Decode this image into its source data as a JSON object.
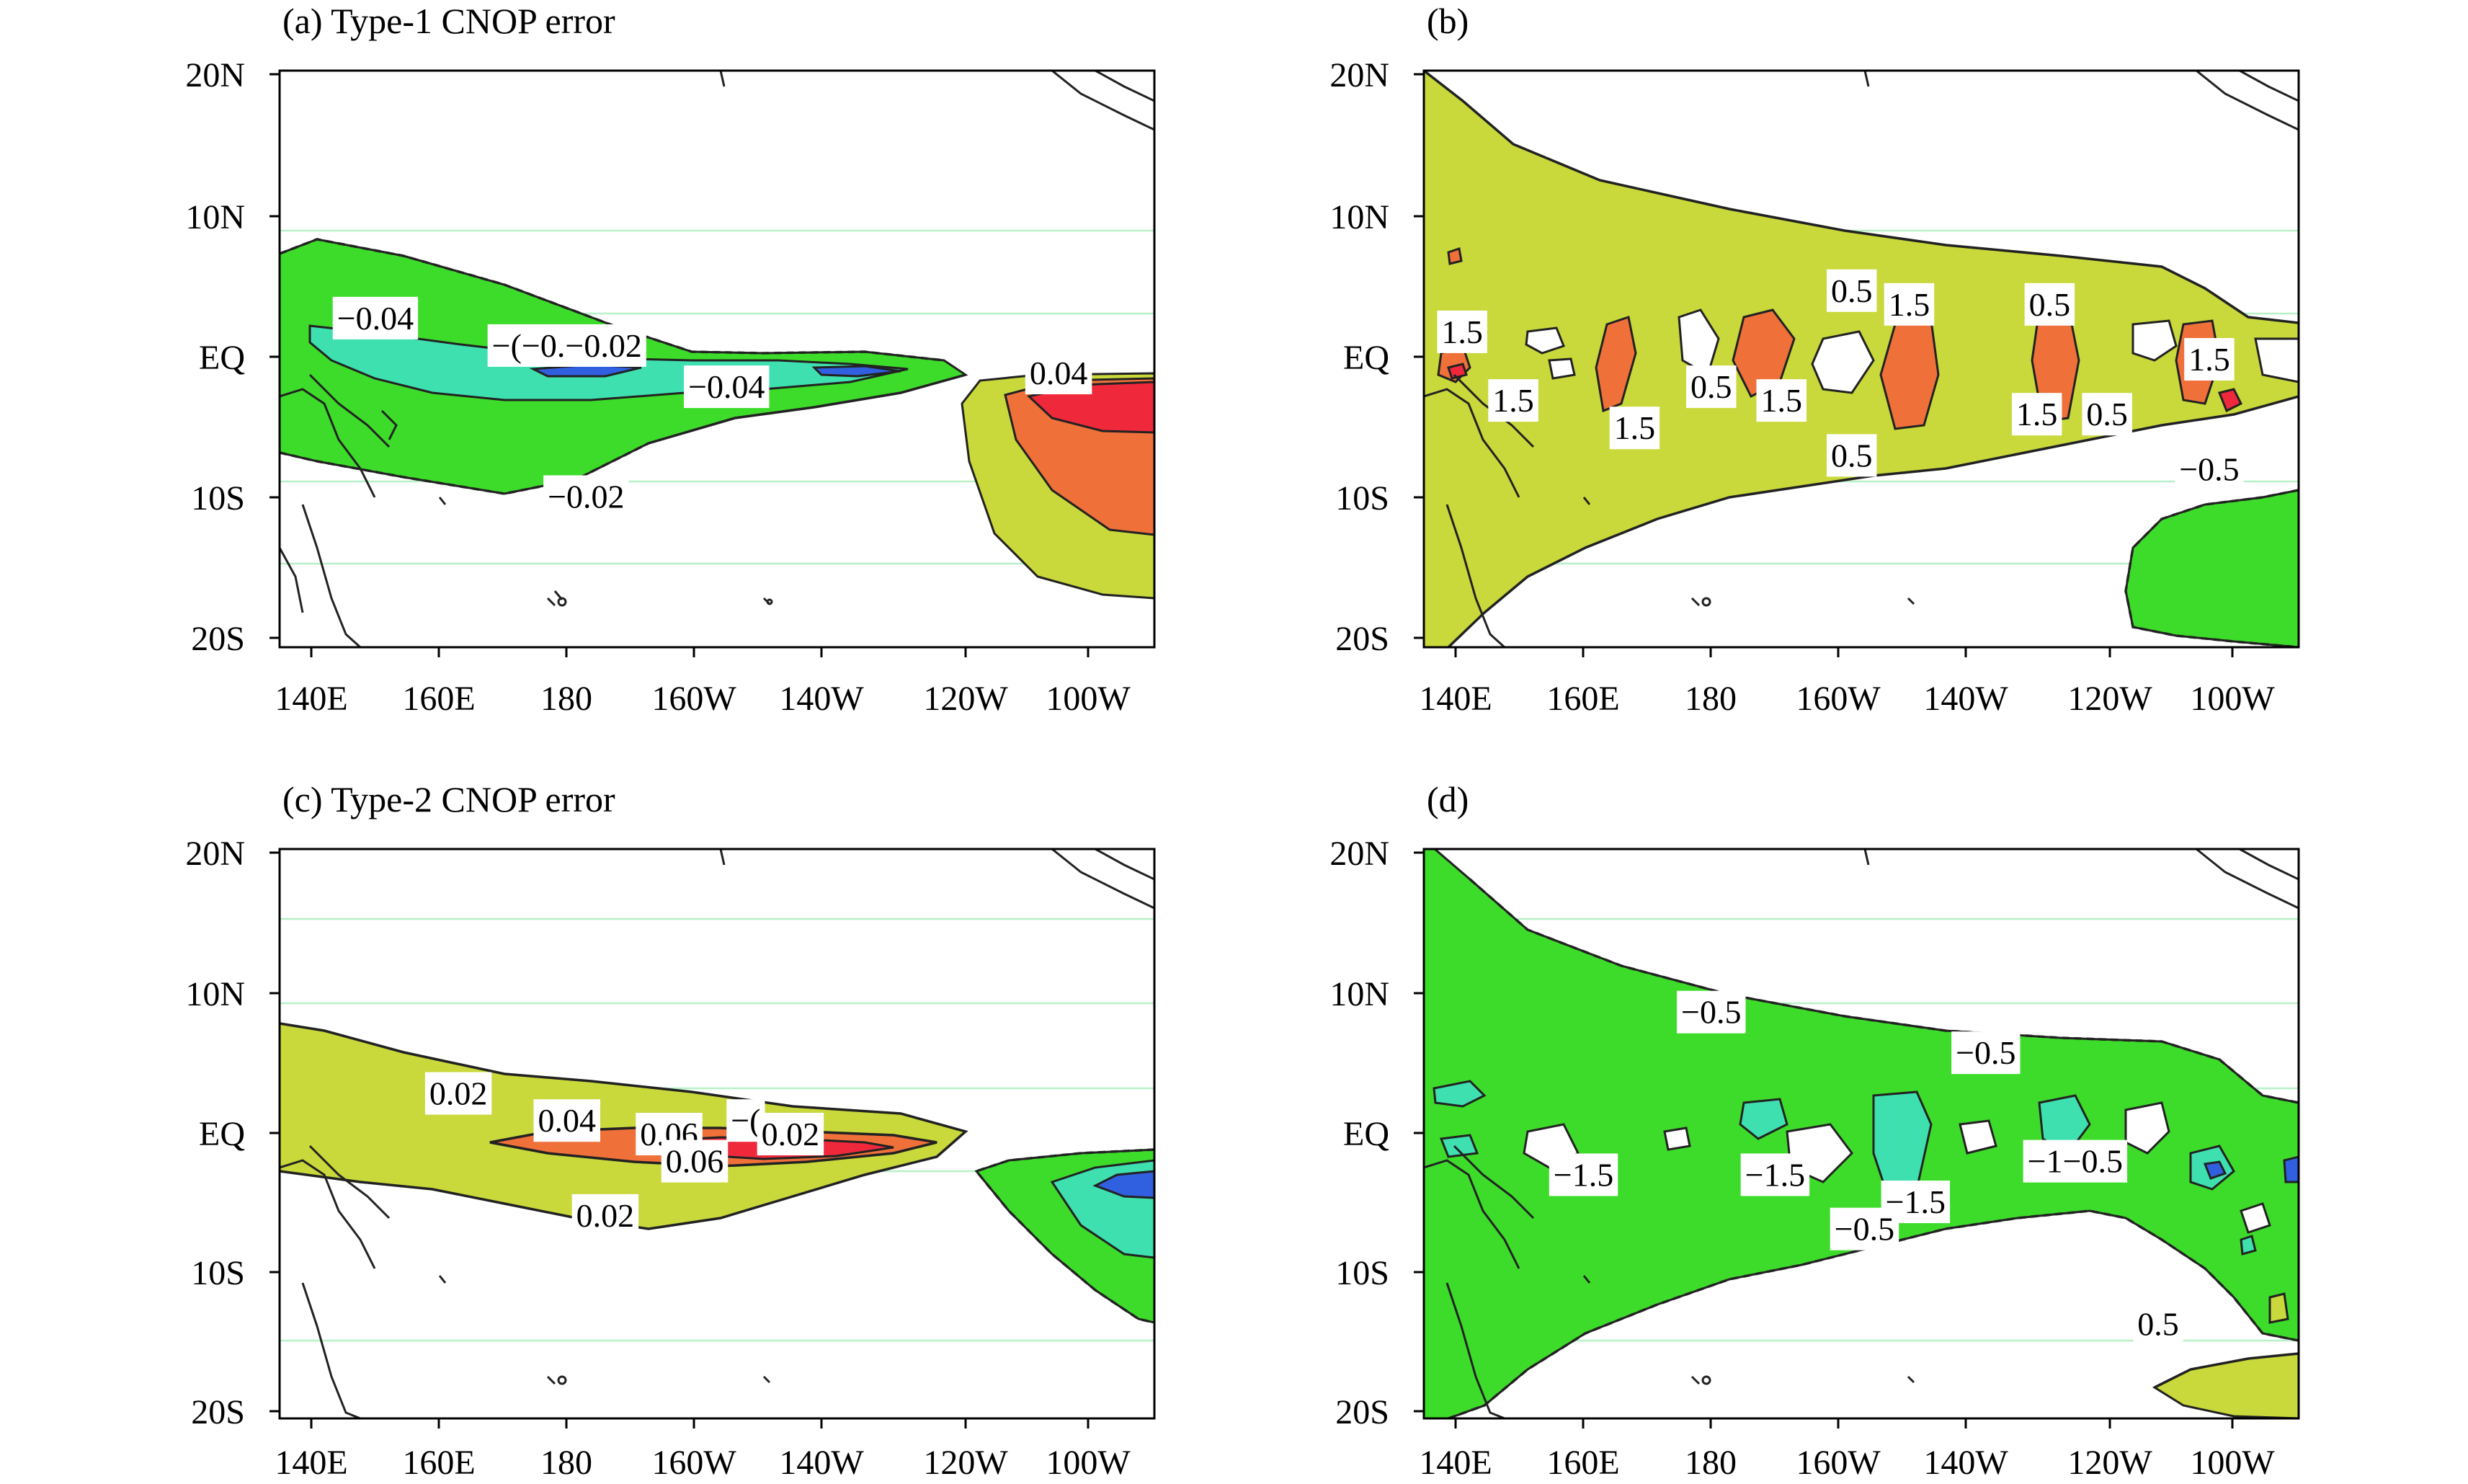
{
  "colors": {
    "green": "#3ddc2a",
    "teal": "#3fe0b0",
    "blue": "#3060e0",
    "yellow": "#c9d83a",
    "orange": "#f0703a",
    "red": "#f0283c",
    "coast": "#222222",
    "gridline": "#b8f0c8"
  },
  "chart_data": [
    {
      "type": "contour-map",
      "panel": "a",
      "title": "(a) Type-1 CNOP error",
      "xticks": [
        "140E",
        "160E",
        "180",
        "160W",
        "140W",
        "120W",
        "100W"
      ],
      "yticks": [
        "20N",
        "10N",
        "EQ",
        "10S",
        "20S"
      ],
      "xlim": [
        "140E",
        "100W"
      ],
      "ylim": [
        "20S",
        "20N"
      ],
      "contour_labels": [
        {
          "text": "−0.04",
          "lon": 150,
          "lat": 3
        },
        {
          "text": "−(−0.−0.02",
          "lon": 180,
          "lat": 1
        },
        {
          "text": "−0.04",
          "lon": 205,
          "lat": -2
        },
        {
          "text": "0.04",
          "lon": 257,
          "lat": -1
        },
        {
          "text": "−0.02",
          "lon": 183,
          "lat": -10
        }
      ]
    },
    {
      "type": "contour-map",
      "panel": "b",
      "title": "(b)",
      "xticks": [
        "140E",
        "160E",
        "180",
        "160W",
        "140W",
        "120W",
        "100W"
      ],
      "yticks": [
        "20N",
        "10N",
        "EQ",
        "10S",
        "20S"
      ],
      "xlim": [
        "140E",
        "100W"
      ],
      "ylim": [
        "20S",
        "20N"
      ],
      "contour_labels": [
        {
          "text": "1.5",
          "lon": 141,
          "lat": 2
        },
        {
          "text": "1.5",
          "lon": 149,
          "lat": -3
        },
        {
          "text": "1.5",
          "lon": 168,
          "lat": -5
        },
        {
          "text": "0.5",
          "lon": 180,
          "lat": -2
        },
        {
          "text": "1.5",
          "lon": 191,
          "lat": -3
        },
        {
          "text": "0.5",
          "lon": 202,
          "lat": 5
        },
        {
          "text": "1.5",
          "lon": 211,
          "lat": 4
        },
        {
          "text": "0.5",
          "lon": 202,
          "lat": -7
        },
        {
          "text": "0.5",
          "lon": 233,
          "lat": 4
        },
        {
          "text": "1.5",
          "lon": 231,
          "lat": -4
        },
        {
          "text": "0.5",
          "lon": 242,
          "lat": -4
        },
        {
          "text": "1.5",
          "lon": 258,
          "lat": 0
        },
        {
          "text": "−0.5",
          "lon": 258,
          "lat": -8
        }
      ]
    },
    {
      "type": "contour-map",
      "panel": "c",
      "title": "(c) Type-2 CNOP error",
      "xticks": [
        "140E",
        "160E",
        "180",
        "160W",
        "140W",
        "120W",
        "100W"
      ],
      "yticks": [
        "20N",
        "10N",
        "EQ",
        "10S",
        "20S"
      ],
      "xlim": [
        "140E",
        "100W"
      ],
      "ylim": [
        "20S",
        "20N"
      ],
      "contour_labels": [
        {
          "text": "0.02",
          "lon": 163,
          "lat": 3
        },
        {
          "text": "0.04",
          "lon": 180,
          "lat": 1
        },
        {
          "text": "0.06",
          "lon": 196,
          "lat": 0
        },
        {
          "text": "−(",
          "lon": 208,
          "lat": 1
        },
        {
          "text": "0.02",
          "lon": 215,
          "lat": 0
        },
        {
          "text": "0.06",
          "lon": 200,
          "lat": -2
        },
        {
          "text": "0.02",
          "lon": 186,
          "lat": -6
        }
      ]
    },
    {
      "type": "contour-map",
      "panel": "d",
      "title": "(d)",
      "xticks": [
        "140E",
        "160E",
        "180",
        "160W",
        "140W",
        "120W",
        "100W"
      ],
      "yticks": [
        "20N",
        "10N",
        "EQ",
        "10S",
        "20S"
      ],
      "xlim": [
        "140E",
        "100W"
      ],
      "ylim": [
        "20S",
        "20N"
      ],
      "contour_labels": [
        {
          "text": "−0.5",
          "lon": 180,
          "lat": 9
        },
        {
          "text": "−0.5",
          "lon": 223,
          "lat": 6
        },
        {
          "text": "−1.5",
          "lon": 160,
          "lat": -3
        },
        {
          "text": "−1.5",
          "lon": 190,
          "lat": -3
        },
        {
          "text": "−1.5",
          "lon": 212,
          "lat": -5
        },
        {
          "text": "−0.5",
          "lon": 204,
          "lat": -7
        },
        {
          "text": "−1−0.5",
          "lon": 237,
          "lat": -2
        },
        {
          "text": "0.5",
          "lon": 250,
          "lat": -14
        }
      ]
    }
  ]
}
